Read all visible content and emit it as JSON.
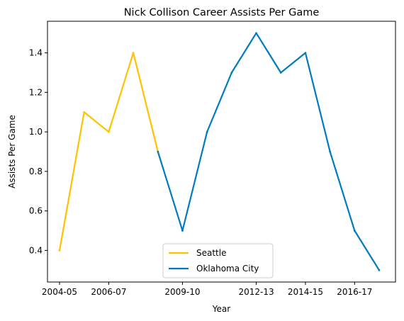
{
  "chart_data": {
    "type": "line",
    "title": "Nick Collison Career Assists Per Game",
    "xlabel": "Year",
    "ylabel": "Assists Per Game",
    "x": [
      "2004-05",
      "2005-06",
      "2006-07",
      "2007-08",
      "2008-09",
      "2009-10",
      "2010-11",
      "2011-12",
      "2012-13",
      "2013-14",
      "2014-15",
      "2015-16",
      "2016-17",
      "2017-18"
    ],
    "x_ticks": [
      "2004-05",
      "2006-07",
      "2009-10",
      "2012-13",
      "2014-15",
      "2016-17"
    ],
    "y_ticks": [
      0.4,
      0.6,
      0.8,
      1.0,
      1.2,
      1.4
    ],
    "ylim": [
      0.24,
      1.56
    ],
    "series": [
      {
        "name": "Seattle",
        "color": "#FFC200",
        "x": [
          "2004-05",
          "2005-06",
          "2006-07",
          "2007-08",
          "2008-09"
        ],
        "values": [
          0.4,
          1.1,
          1.0,
          1.4,
          0.9
        ]
      },
      {
        "name": "Oklahoma City",
        "color": "#007AC1",
        "x": [
          "2008-09",
          "2009-10",
          "2010-11",
          "2011-12",
          "2012-13",
          "2013-14",
          "2014-15",
          "2015-16",
          "2016-17",
          "2017-18"
        ],
        "values": [
          0.9,
          0.5,
          1.0,
          1.3,
          1.5,
          1.3,
          1.4,
          0.9,
          0.5,
          0.3
        ]
      }
    ],
    "grid": false,
    "legend_position": "lower center"
  }
}
